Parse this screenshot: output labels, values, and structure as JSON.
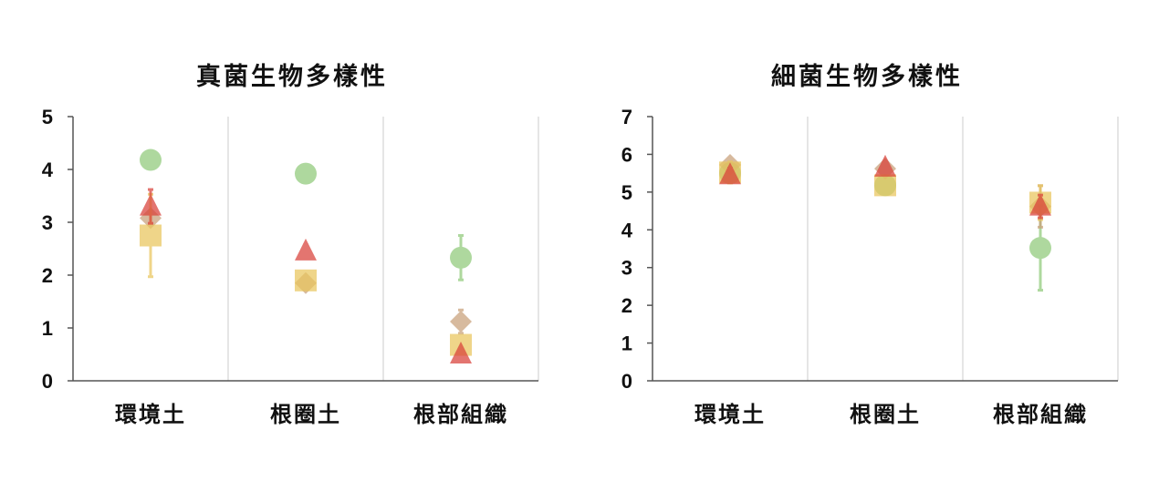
{
  "chart_data": [
    {
      "type": "scatter",
      "title": "真菌生物多樣性",
      "categories": [
        "環境土",
        "根圈土",
        "根部組織"
      ],
      "ylim": [
        0,
        5
      ],
      "yticks": [
        0,
        1,
        2,
        3,
        4,
        5
      ],
      "grid": "vertical separators between categories",
      "legend": "none",
      "series": [
        {
          "marker": "circle",
          "color": "#8fca7a",
          "values": [
            4.18,
            3.92,
            2.33
          ],
          "errors": [
            0.1,
            0.08,
            0.42
          ]
        },
        {
          "marker": "diamond",
          "color": "#c9a07a",
          "values": [
            3.08,
            1.85,
            1.12
          ],
          "errors": [
            0.1,
            0.08,
            0.22
          ]
        },
        {
          "marker": "square",
          "color": "#e9c65d",
          "values": [
            2.75,
            1.9,
            0.68
          ],
          "errors": [
            0.78,
            0.1,
            0.1
          ]
        },
        {
          "marker": "triangle",
          "color": "#d9413a",
          "values": [
            3.3,
            2.45,
            0.5
          ],
          "errors": [
            0.32,
            0.12,
            0.1
          ]
        }
      ]
    },
    {
      "type": "scatter",
      "title": "細菌生物多樣性",
      "categories": [
        "環境土",
        "根圈土",
        "根部組織"
      ],
      "ylim": [
        0,
        7
      ],
      "yticks": [
        0,
        1,
        2,
        3,
        4,
        5,
        6,
        7
      ],
      "grid": "vertical separators between categories",
      "legend": "none",
      "series": [
        {
          "marker": "circle",
          "color": "#8fca7a",
          "values": [
            5.5,
            5.18,
            3.52
          ],
          "errors": [
            0.1,
            0.1,
            1.12
          ]
        },
        {
          "marker": "diamond",
          "color": "#c9a07a",
          "values": [
            5.72,
            5.62,
            4.62
          ],
          "errors": [
            0.1,
            0.1,
            0.55
          ]
        },
        {
          "marker": "square",
          "color": "#e9c65d",
          "values": [
            5.52,
            5.18,
            4.72
          ],
          "errors": [
            0.28,
            0.15,
            0.45
          ]
        },
        {
          "marker": "triangle",
          "color": "#d9413a",
          "values": [
            5.45,
            5.65,
            4.62
          ],
          "errors": [
            0.18,
            0.12,
            0.3
          ]
        }
      ]
    }
  ]
}
